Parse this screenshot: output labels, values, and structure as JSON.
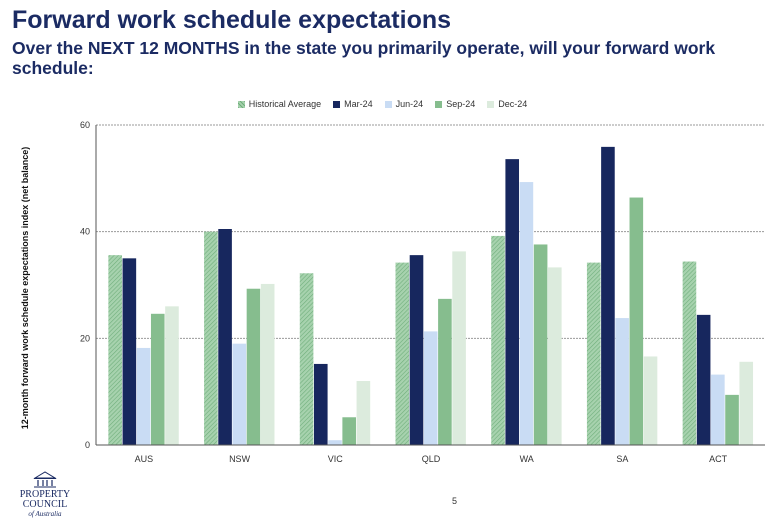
{
  "header": {
    "title": "Forward work schedule expectations",
    "subtitle": "Over the NEXT 12 MONTHS in the state you primarily operate, will your forward work schedule:"
  },
  "footer": {
    "page_number": "5",
    "logo": {
      "line1": "PROPERTY",
      "line2": "COUNCIL",
      "line3": "of Australia"
    }
  },
  "chart_data": {
    "type": "bar",
    "ylabel": "12-month forward work schedule expectations index (net balance)",
    "xlabel": "",
    "ylim": [
      0,
      60
    ],
    "yticks": [
      0,
      20,
      40,
      60
    ],
    "grid": true,
    "legend_position": "top-center",
    "categories": [
      "AUS",
      "NSW",
      "VIC",
      "QLD",
      "WA",
      "SA",
      "ACT"
    ],
    "series": [
      {
        "name": "Historical Average",
        "color": "#8cc49a",
        "pattern": "hatched",
        "values": [
          35.6,
          40.0,
          32.2,
          34.2,
          39.2,
          34.2,
          34.4
        ]
      },
      {
        "name": "Mar-24",
        "color": "#17275e",
        "pattern": "solid",
        "values": [
          35.0,
          40.5,
          15.2,
          35.6,
          53.6,
          55.9,
          24.4
        ]
      },
      {
        "name": "Jun-24",
        "color": "#c9dcf4",
        "pattern": "solid",
        "values": [
          18.2,
          19.0,
          0.9,
          21.3,
          49.3,
          23.8,
          13.2
        ]
      },
      {
        "name": "Sep-24",
        "color": "#86bd8e",
        "pattern": "solid",
        "values": [
          24.6,
          29.3,
          5.2,
          27.4,
          37.6,
          46.4,
          9.4
        ]
      },
      {
        "name": "Dec-24",
        "color": "#dcebdd",
        "pattern": "solid",
        "values": [
          26.0,
          30.2,
          12.0,
          36.3,
          33.3,
          16.6,
          15.6
        ]
      }
    ]
  }
}
